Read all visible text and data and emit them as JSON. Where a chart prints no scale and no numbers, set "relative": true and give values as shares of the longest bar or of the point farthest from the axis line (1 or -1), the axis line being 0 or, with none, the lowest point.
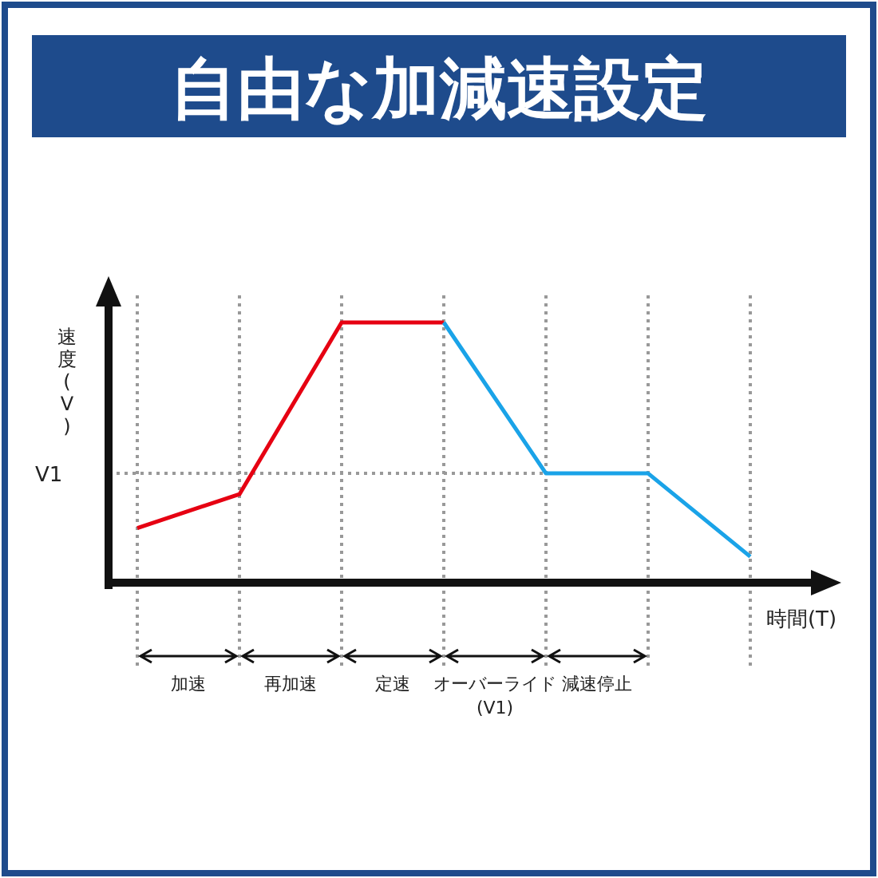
{
  "chart_data": {
    "type": "line",
    "title": "自由な加減速設定",
    "ylabel": "速度(V)",
    "xlabel": "時間(T)",
    "relative": true,
    "grid": "x",
    "marker": "none",
    "line_style": "solid",
    "categories": [
      null,
      null,
      null,
      null,
      null,
      null,
      null
    ],
    "series": [
      {
        "color": "#e60012",
        "values": [
          0.21,
          0.34,
          1,
          1,
          null,
          null,
          null
        ]
      },
      {
        "color": "#1aa3e8",
        "values": [
          null,
          null,
          null,
          1,
          0.42,
          0.42,
          0.1
        ]
      }
    ],
    "ref_lines": [
      {
        "axis": "y",
        "value": 0.42,
        "label": "V1",
        "color": "#999999",
        "line_style": "dotted"
      }
    ],
    "annotations": [
      "加速",
      "再加速",
      "定速",
      "オーバーライド\n(V1)",
      "減速停止"
    ]
  }
}
